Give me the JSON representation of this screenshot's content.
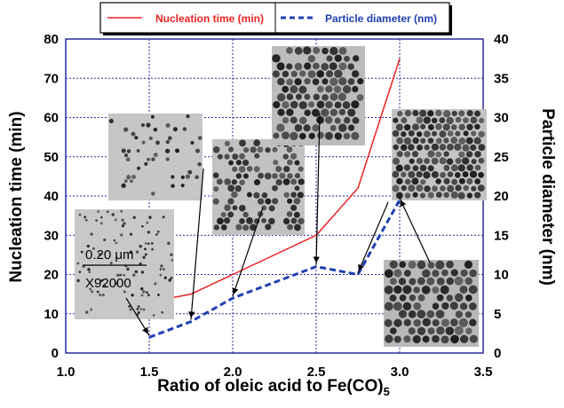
{
  "colors": {
    "nucleation": "#ee2222",
    "diameter": "#1f3fb0",
    "grid": "#2a2a9a",
    "tem_background": "#b9b9b9",
    "tem_particle": "#2a2a2a"
  },
  "chart_data": {
    "type": "line",
    "x": [
      1.5,
      1.75,
      2.0,
      2.5,
      2.75,
      3.0
    ],
    "xlabel": "Ratio of oleic acid to Fe(CO)",
    "xlabel_subscript": "5",
    "ylabel": "Nucleation time (min)",
    "y2label": "Particle diameter (nm)",
    "xlim": [
      1.0,
      3.5
    ],
    "ylim": [
      0,
      80
    ],
    "y2lim": [
      0,
      40
    ],
    "xticks": [
      "1.0",
      "1.5",
      "2.0",
      "2.5",
      "3.0",
      "3.5"
    ],
    "yticks": [
      "0",
      "10",
      "20",
      "30",
      "40",
      "50",
      "60",
      "70",
      "80"
    ],
    "y2ticks": [
      "0",
      "5",
      "10",
      "15",
      "20",
      "25",
      "30",
      "35",
      "40"
    ],
    "grid": true,
    "legend_position": "top",
    "series": [
      {
        "name": "Nucleation time (min)",
        "axis": "left",
        "style": "solid",
        "x": [
          1.5,
          1.75,
          2.0,
          2.5,
          2.75,
          3.0
        ],
        "values": [
          13,
          15,
          20,
          30,
          42,
          75
        ]
      },
      {
        "name": "Particle diameter (nm)",
        "axis": "right",
        "style": "dashed",
        "x": [
          1.5,
          1.75,
          2.0,
          2.5,
          2.75,
          3.0
        ],
        "values": [
          2,
          4,
          7,
          11,
          10,
          19.5
        ]
      }
    ],
    "annotations": {
      "scale_bar_label": "0.20 μm",
      "magnification": "X92000"
    }
  },
  "insets": [
    {
      "id": "1.5",
      "points_to_x": 1.5
    },
    {
      "id": "1.75",
      "points_to_x": 1.75
    },
    {
      "id": "2.0",
      "points_to_x": 2.0
    },
    {
      "id": "2.5",
      "points_to_x": 2.5
    },
    {
      "id": "2.75",
      "points_to_x": 2.75
    },
    {
      "id": "3.0",
      "points_to_x": 3.0
    }
  ]
}
